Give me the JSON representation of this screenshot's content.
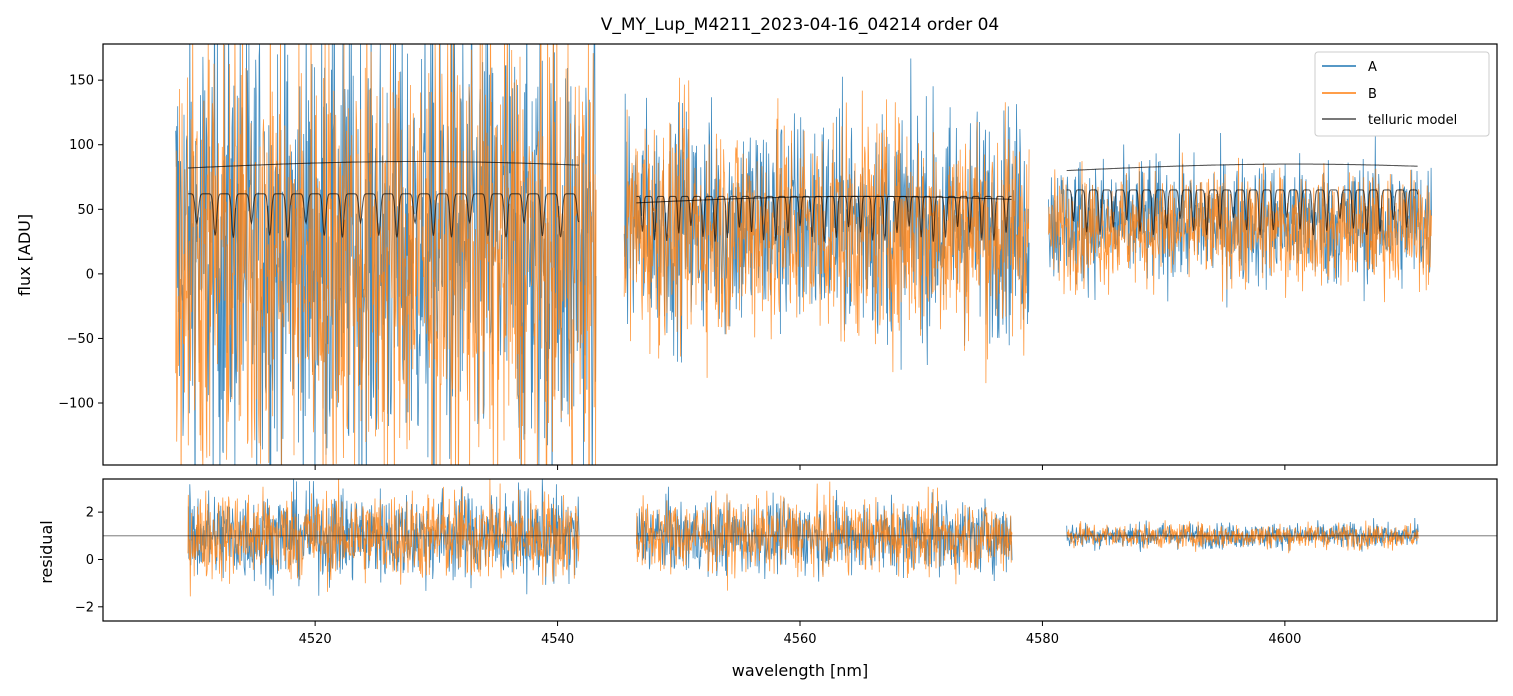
{
  "chart_data": [
    {
      "panel": "flux",
      "type": "line",
      "title": "V_MY_Lup_M4211_2023-04-16_04214  order 04",
      "xlabel": "",
      "ylabel": "flux [ADU]",
      "xlim": [
        4502.5,
        4617.5
      ],
      "ylim": [
        -148,
        178
      ],
      "yticks": [
        -100,
        -50,
        0,
        50,
        100,
        150
      ],
      "yticklabels": [
        "−100",
        "−50",
        "0",
        "50",
        "100",
        "150"
      ],
      "xticks": [
        4520,
        4540,
        4560,
        4580,
        4600
      ],
      "legend": {
        "placement": "upper right",
        "entries": [
          "A",
          "B",
          "telluric model"
        ]
      },
      "colors": {
        "A": "#1f77b4",
        "B": "#ff7f0e",
        "telluric model": "#000000"
      },
      "segments": [
        {
          "x": [
            4508.5,
            4543.2
          ],
          "A_center": 20,
          "A_spread": 165,
          "B_center": 15,
          "B_spread": 165
        },
        {
          "x": [
            4545.5,
            4578.9
          ],
          "A_center": 40,
          "A_spread": 80,
          "B_center": 35,
          "B_spread": 80
        },
        {
          "x": [
            4580.5,
            4612.1
          ],
          "A_center": 40,
          "A_spread": 45,
          "B_center": 35,
          "B_spread": 40
        }
      ],
      "telluric_model": [
        {
          "x": [
            4509.5,
            4541.8
          ],
          "upper_center": 82,
          "lower_center": 52,
          "line_period_nm": 1.5
        },
        {
          "x": [
            4546.5,
            4577.5
          ],
          "upper_center": 55,
          "lower_center": 50,
          "line_period_nm": 1.0
        },
        {
          "x": [
            4582.0,
            4611.0
          ],
          "upper_center": 80,
          "lower_center": 55,
          "line_period_nm": 1.1
        }
      ]
    },
    {
      "panel": "residual",
      "type": "line",
      "xlabel": "wavelength [nm]",
      "ylabel": "residual",
      "xlim": [
        4502.5,
        4617.5
      ],
      "ylim": [
        -2.6,
        3.4
      ],
      "yticks": [
        -2,
        0,
        2
      ],
      "yticklabels": [
        "−2",
        "0",
        "2"
      ],
      "xticks": [
        4520,
        4540,
        4560,
        4580,
        4600
      ],
      "xticklabels": [
        "4520",
        "4540",
        "4560",
        "4580",
        "4600"
      ],
      "reference_line": 1,
      "segments": [
        {
          "x": [
            4509.5,
            4541.8
          ],
          "spread": 1.6
        },
        {
          "x": [
            4546.5,
            4577.5
          ],
          "spread": 1.3
        },
        {
          "x": [
            4582.0,
            4611.0
          ],
          "spread": 0.45
        }
      ]
    }
  ]
}
